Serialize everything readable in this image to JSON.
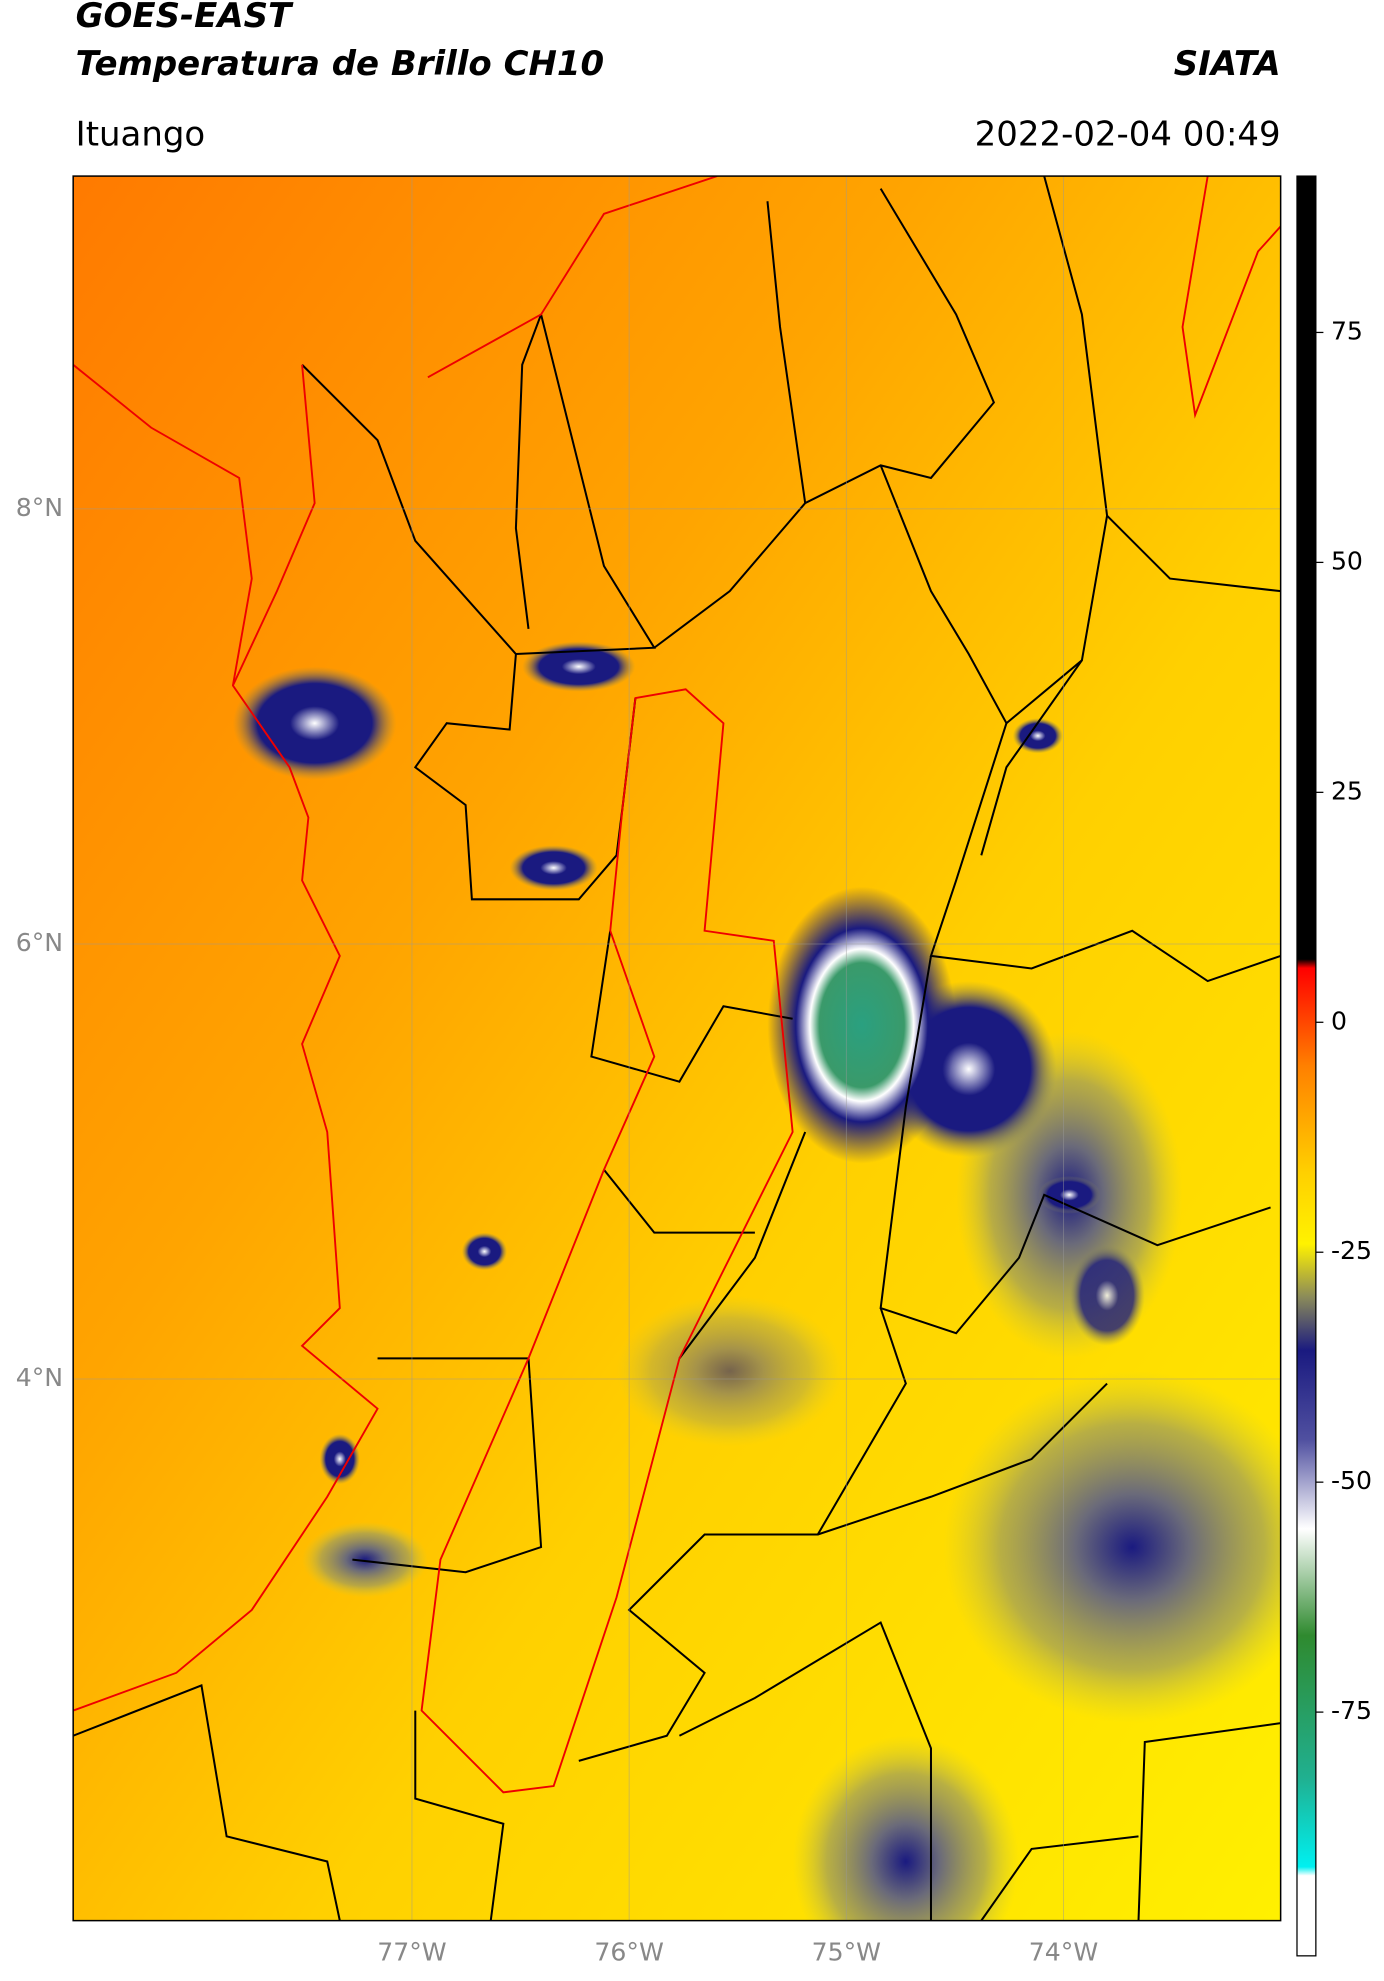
{
  "header": {
    "title": "GOES-EAST",
    "subtitle": "Temperatura de Brillo CH10",
    "organization": "SIATA",
    "location": "Ituango",
    "datetime": "2022-02-04 00:49"
  },
  "map": {
    "xlim": [
      -78.56,
      -73.0
    ],
    "ylim": [
      1.51,
      9.53
    ],
    "xticks": [
      {
        "value": -77,
        "label": "77°W"
      },
      {
        "value": -76,
        "label": "76°W"
      },
      {
        "value": -75,
        "label": "75°W"
      },
      {
        "value": -74,
        "label": "74°W"
      }
    ],
    "yticks": [
      {
        "value": 8,
        "label": "8°N"
      },
      {
        "value": 6,
        "label": "6°N"
      },
      {
        "value": 4,
        "label": "4°N"
      }
    ],
    "grid": true
  },
  "colorbar": {
    "lim": [
      -101.5,
      92
    ],
    "ticks": [
      75,
      50,
      25,
      0,
      -25,
      -50,
      -75
    ]
  }
}
